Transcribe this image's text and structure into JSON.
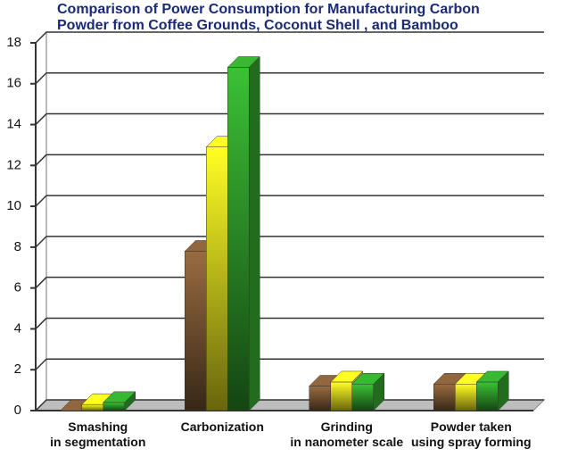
{
  "chart_data": {
    "type": "bar3d",
    "title": "Comparison of Power Consumption for Manufacturing Carbon\nPowder from Coffee Grounds, Coconut Shell , and Bamboo",
    "categories": [
      "Smashing\nin segmentation",
      "Carbonization",
      "Grinding\nin nanometer scale",
      "Powder taken\nusing spray forming"
    ],
    "series": [
      {
        "color": "#7a5634",
        "values": [
          0,
          7.8,
          1.2,
          1.3
        ]
      },
      {
        "color": "#e6e01c",
        "values": [
          0.3,
          12.9,
          1.4,
          1.3
        ]
      },
      {
        "color": "#2f9a2a",
        "values": [
          0.4,
          16.8,
          1.3,
          1.4
        ]
      }
    ],
    "ylim": [
      0,
      18
    ],
    "yticks": [
      0,
      2,
      4,
      6,
      8,
      10,
      12,
      14,
      16,
      18
    ],
    "grid": true
  }
}
